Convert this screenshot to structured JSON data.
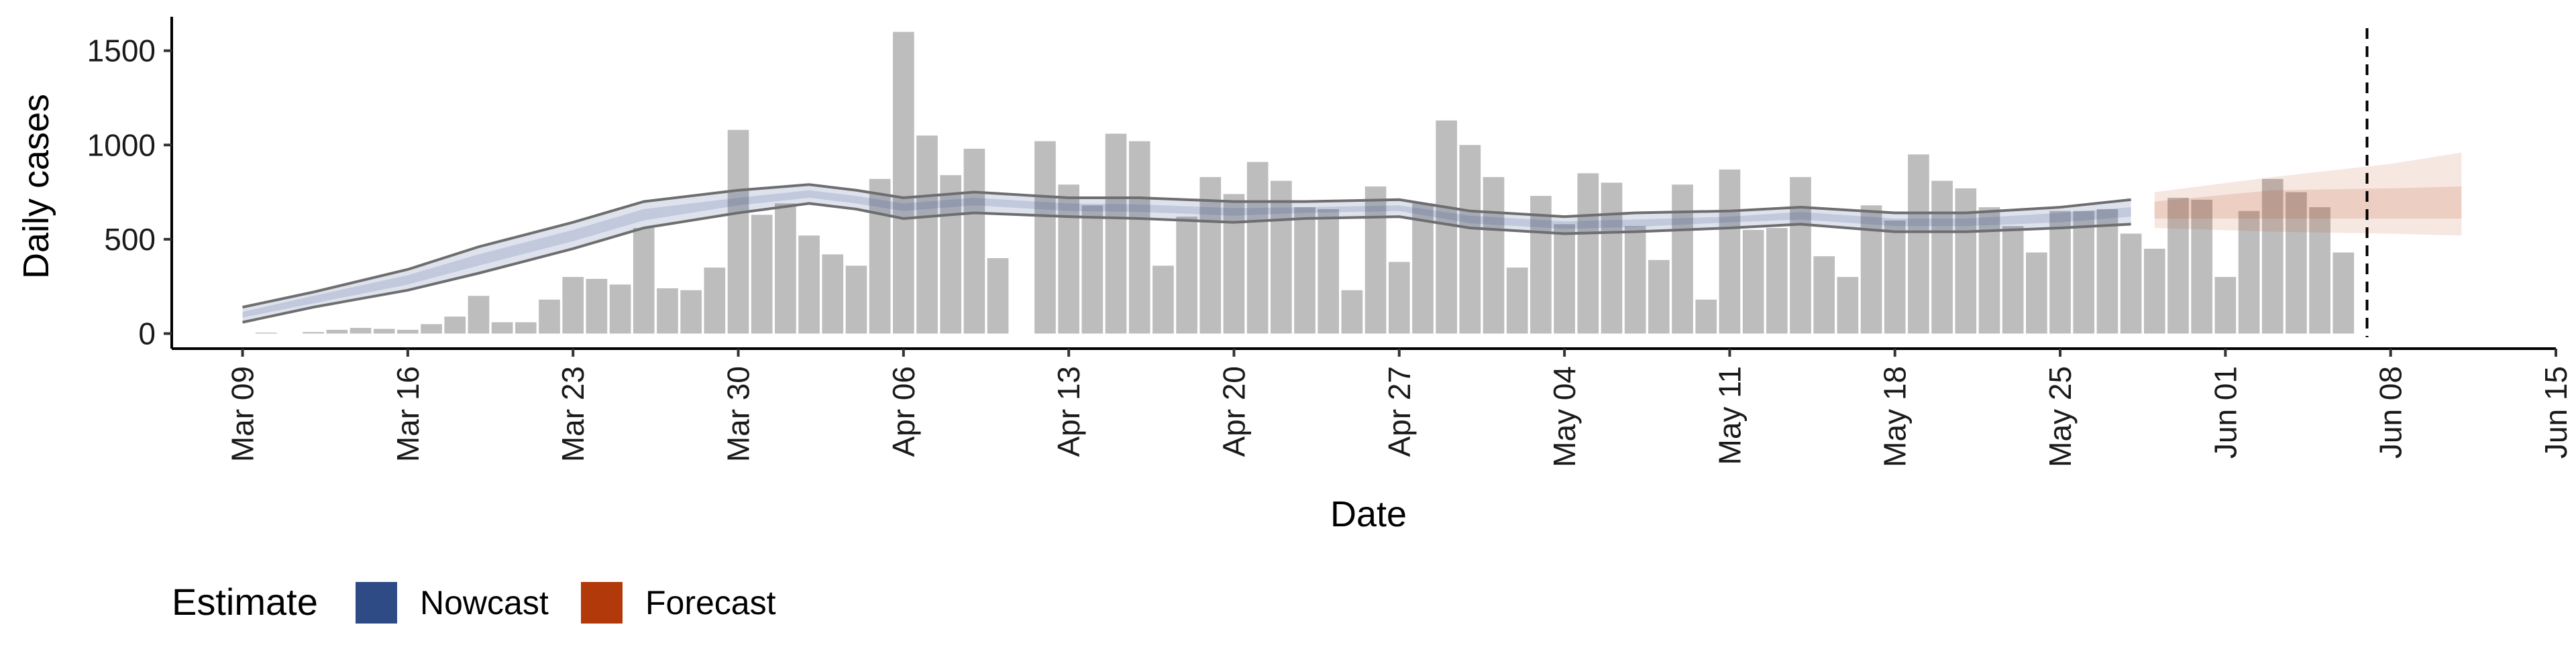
{
  "chart_data": {
    "type": "bar",
    "xlabel": "Date",
    "ylabel": "Daily cases",
    "xlim": [
      "2020-03-06",
      "2020-06-15"
    ],
    "ylim": [
      -80,
      1680
    ],
    "y_ticks": [
      0,
      500,
      1000,
      1500
    ],
    "x_ticks": [
      {
        "date": "2020-03-09",
        "label": "Mar 09"
      },
      {
        "date": "2020-03-16",
        "label": "Mar 16"
      },
      {
        "date": "2020-03-23",
        "label": "Mar 23"
      },
      {
        "date": "2020-03-30",
        "label": "Mar 30"
      },
      {
        "date": "2020-04-06",
        "label": "Apr 06"
      },
      {
        "date": "2020-04-13",
        "label": "Apr 13"
      },
      {
        "date": "2020-04-20",
        "label": "Apr 20"
      },
      {
        "date": "2020-04-27",
        "label": "Apr 27"
      },
      {
        "date": "2020-05-04",
        "label": "May 04"
      },
      {
        "date": "2020-05-11",
        "label": "May 11"
      },
      {
        "date": "2020-05-18",
        "label": "May 18"
      },
      {
        "date": "2020-05-25",
        "label": "May 25"
      },
      {
        "date": "2020-06-01",
        "label": "Jun 01"
      },
      {
        "date": "2020-06-08",
        "label": "Jun 08"
      },
      {
        "date": "2020-06-15",
        "label": "Jun 15"
      }
    ],
    "vline_date": "2020-06-07",
    "grid": false,
    "legend_position": "bottom-left",
    "colors": {
      "bars": "#bdbdbd",
      "nowcast": "#2f4b86",
      "forecast": "#b23a0a",
      "outline": "#6e6e6e",
      "vline": "#000000"
    },
    "observed_cases": {
      "start_date": "2020-03-09",
      "values": [
        0,
        5,
        0,
        8,
        20,
        30,
        25,
        20,
        50,
        90,
        200,
        60,
        60,
        180,
        300,
        290,
        260,
        560,
        240,
        230,
        350,
        1080,
        630,
        690,
        520,
        420,
        360,
        820,
        1600,
        1050,
        840,
        980,
        400,
        0,
        1020,
        790,
        680,
        1060,
        1020,
        360,
        620,
        830,
        740,
        910,
        810,
        670,
        660,
        230,
        780,
        380,
        690,
        1130,
        1000,
        830,
        350,
        730,
        580,
        850,
        800,
        570,
        390,
        790,
        180,
        870,
        550,
        560,
        830,
        410,
        300,
        680,
        600,
        950,
        810,
        770,
        670,
        570,
        430,
        650,
        650,
        660,
        530,
        450,
        720,
        710,
        300,
        650,
        820,
        750,
        670,
        430
      ]
    },
    "estimate_series": [
      {
        "name": "Nowcast",
        "dates": [
          "2020-03-09",
          "2020-03-12",
          "2020-03-16",
          "2020-03-19",
          "2020-03-23",
          "2020-03-26",
          "2020-03-30",
          "2020-04-02",
          "2020-04-04",
          "2020-04-06",
          "2020-04-09",
          "2020-04-13",
          "2020-04-16",
          "2020-04-20",
          "2020-04-23",
          "2020-04-27",
          "2020-04-30",
          "2020-05-04",
          "2020-05-07",
          "2020-05-11",
          "2020-05-14",
          "2020-05-18",
          "2020-05-21",
          "2020-05-25",
          "2020-05-28"
        ],
        "outer_lower": [
          60,
          140,
          230,
          320,
          450,
          560,
          640,
          690,
          660,
          610,
          640,
          620,
          610,
          590,
          610,
          620,
          560,
          530,
          540,
          560,
          580,
          540,
          540,
          560,
          580
        ],
        "outer_upper": [
          140,
          220,
          340,
          460,
          590,
          700,
          760,
          790,
          760,
          720,
          750,
          720,
          720,
          700,
          700,
          710,
          650,
          620,
          640,
          650,
          670,
          640,
          640,
          670,
          710
        ],
        "inner_lower": [
          85,
          160,
          260,
          360,
          490,
          600,
          680,
          720,
          690,
          650,
          680,
          650,
          645,
          625,
          640,
          650,
          585,
          555,
          565,
          590,
          605,
          570,
          570,
          590,
          620
        ],
        "inner_upper": [
          115,
          200,
          310,
          420,
          550,
          660,
          720,
          760,
          730,
          690,
          720,
          690,
          685,
          665,
          670,
          680,
          625,
          595,
          605,
          620,
          645,
          610,
          610,
          640,
          670
        ]
      },
      {
        "name": "Forecast",
        "dates": [
          "2020-05-29",
          "2020-06-03",
          "2020-06-08",
          "2020-06-11"
        ],
        "outer_lower": [
          560,
          540,
          530,
          520
        ],
        "outer_upper": [
          750,
          830,
          900,
          960
        ],
        "inner_lower": [
          610,
          610,
          610,
          610
        ],
        "inner_upper": [
          700,
          760,
          770,
          780
        ]
      }
    ]
  },
  "legend": {
    "title": "Estimate",
    "items": [
      {
        "label": "Nowcast",
        "color": "#2f4b86"
      },
      {
        "label": "Forecast",
        "color": "#b23a0a"
      }
    ]
  }
}
